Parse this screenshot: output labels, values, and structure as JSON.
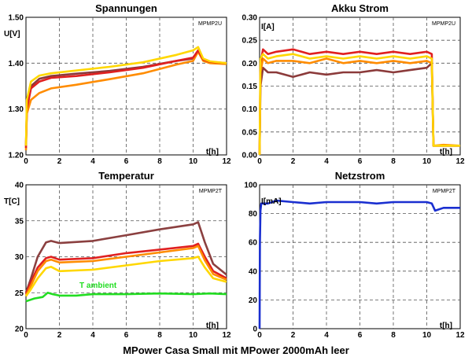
{
  "caption": "MPower Casa Small mit MPower 2000mAh leer",
  "chart_data": [
    {
      "type": "line",
      "title": "Spannungen",
      "ylabel": "U[V]",
      "xlabel": "t[h]",
      "tag": "MPMP2U",
      "xlim": [
        0,
        12
      ],
      "ylim": [
        1.2,
        1.5
      ],
      "xticks": [
        "0",
        "2",
        "4",
        "6",
        "8",
        "10",
        "12"
      ],
      "yticks": [
        "1.20",
        "1.30",
        "1.40",
        "1.50"
      ],
      "grid": true,
      "series": [
        {
          "color": "#8b3a3a",
          "x": [
            0,
            0.05,
            0.3,
            0.8,
            1.5,
            3,
            5,
            7,
            9,
            10,
            10.3,
            10.6,
            11,
            12
          ],
          "y": [
            1.22,
            1.3,
            1.35,
            1.366,
            1.372,
            1.377,
            1.383,
            1.392,
            1.405,
            1.41,
            1.425,
            1.407,
            1.402,
            1.4
          ]
        },
        {
          "color": "#ff8c00",
          "x": [
            0,
            0.05,
            0.3,
            0.8,
            1.5,
            3,
            5,
            7,
            9,
            10,
            10.3,
            10.6,
            11,
            12
          ],
          "y": [
            1.21,
            1.29,
            1.32,
            1.335,
            1.345,
            1.353,
            1.365,
            1.378,
            1.397,
            1.405,
            1.425,
            1.405,
            1.4,
            1.398
          ]
        },
        {
          "color": "#e02020",
          "x": [
            0,
            0.05,
            0.3,
            0.8,
            1.5,
            3,
            5,
            7,
            9,
            10,
            10.3,
            10.6,
            11,
            12
          ],
          "y": [
            1.215,
            1.3,
            1.345,
            1.36,
            1.368,
            1.372,
            1.38,
            1.39,
            1.405,
            1.412,
            1.428,
            1.408,
            1.403,
            1.4
          ]
        },
        {
          "color": "#ffd700",
          "x": [
            0,
            0.05,
            0.3,
            0.8,
            1.5,
            3,
            5,
            7,
            9,
            10,
            10.3,
            10.6,
            11,
            12
          ],
          "y": [
            1.22,
            1.32,
            1.36,
            1.373,
            1.378,
            1.384,
            1.392,
            1.402,
            1.418,
            1.428,
            1.435,
            1.41,
            1.404,
            1.4
          ]
        }
      ]
    },
    {
      "type": "line",
      "title": "Akku Strom",
      "ylabel": "I[A]",
      "xlabel": "t[h]",
      "tag": "MPMP2U",
      "xlim": [
        0,
        12
      ],
      "ylim": [
        0,
        0.3
      ],
      "xticks": [
        "0",
        "2",
        "4",
        "6",
        "8",
        "10",
        "12"
      ],
      "yticks": [
        "0.00",
        "0.05",
        "0.10",
        "0.15",
        "0.20",
        "0.25",
        "0.30"
      ],
      "grid": true,
      "series": [
        {
          "color": "#8b3a3a",
          "x": [
            0,
            0.05,
            0.2,
            0.5,
            1,
            2,
            3,
            4,
            5,
            6,
            7,
            8,
            9,
            10,
            10.3,
            10.4,
            11,
            12
          ],
          "y": [
            0,
            0.15,
            0.19,
            0.18,
            0.18,
            0.17,
            0.18,
            0.175,
            0.18,
            0.18,
            0.185,
            0.18,
            0.185,
            0.19,
            0.2,
            0.02,
            0.02,
            0.02
          ]
        },
        {
          "color": "#ff8c00",
          "x": [
            0,
            0.05,
            0.2,
            0.5,
            1,
            2,
            3,
            4,
            5,
            6,
            7,
            8,
            9,
            10,
            10.3,
            10.4,
            11,
            12
          ],
          "y": [
            0,
            0.18,
            0.21,
            0.2,
            0.205,
            0.205,
            0.2,
            0.21,
            0.2,
            0.205,
            0.2,
            0.205,
            0.2,
            0.205,
            0.2,
            0.02,
            0.022,
            0.02
          ]
        },
        {
          "color": "#e02020",
          "x": [
            0,
            0.05,
            0.2,
            0.5,
            1,
            2,
            3,
            4,
            5,
            6,
            7,
            8,
            9,
            10,
            10.3,
            10.4,
            11,
            12
          ],
          "y": [
            0,
            0.2,
            0.23,
            0.22,
            0.225,
            0.23,
            0.22,
            0.225,
            0.22,
            0.225,
            0.22,
            0.225,
            0.22,
            0.225,
            0.22,
            0.02,
            0.02,
            0.02
          ]
        },
        {
          "color": "#ffd700",
          "x": [
            0,
            0.05,
            0.2,
            0.5,
            1,
            2,
            3,
            4,
            5,
            6,
            7,
            8,
            9,
            10,
            10.3,
            10.4,
            11,
            12
          ],
          "y": [
            0,
            0.21,
            0.22,
            0.21,
            0.215,
            0.22,
            0.21,
            0.215,
            0.21,
            0.215,
            0.21,
            0.215,
            0.21,
            0.215,
            0.21,
            0.02,
            0.02,
            0.02
          ]
        }
      ]
    },
    {
      "type": "line",
      "title": "Temperatur",
      "ylabel": "T[C]",
      "xlabel": "t[h]",
      "tag": "MPMP2T",
      "annotation": "T ambient",
      "annotation_color": "#22dd22",
      "xlim": [
        0,
        12
      ],
      "ylim": [
        20,
        40
      ],
      "xticks": [
        "0",
        "2",
        "4",
        "6",
        "8",
        "10",
        "12"
      ],
      "yticks": [
        "20",
        "25",
        "30",
        "35",
        "40"
      ],
      "grid": true,
      "series": [
        {
          "color": "#8b4040",
          "x": [
            0,
            0.3,
            0.7,
            1.2,
            1.5,
            2,
            4,
            6,
            8,
            10,
            10.3,
            10.7,
            11.2,
            12
          ],
          "y": [
            25,
            27,
            30,
            32,
            32.2,
            31.9,
            32.2,
            33,
            33.8,
            34.5,
            34.8,
            32,
            29,
            27.5
          ]
        },
        {
          "color": "#e02020",
          "x": [
            0,
            0.3,
            0.7,
            1.2,
            1.5,
            2,
            4,
            6,
            8,
            10,
            10.3,
            10.7,
            11.2,
            12
          ],
          "y": [
            24.8,
            26.5,
            28.5,
            29.8,
            30,
            29.6,
            29.8,
            30.5,
            31,
            31.5,
            31.8,
            30,
            28,
            27
          ]
        },
        {
          "color": "#ff8c00",
          "x": [
            0,
            0.3,
            0.7,
            1.2,
            1.5,
            2,
            4,
            6,
            8,
            10,
            10.3,
            10.7,
            11.2,
            12
          ],
          "y": [
            24.6,
            26,
            28,
            29.4,
            29.6,
            29.2,
            29.4,
            30,
            30.6,
            31.2,
            31.5,
            29.5,
            27.6,
            26.8
          ]
        },
        {
          "color": "#ffd700",
          "x": [
            0,
            0.3,
            0.7,
            1.2,
            1.5,
            2,
            4,
            6,
            8,
            10,
            10.3,
            10.7,
            11.2,
            12
          ],
          "y": [
            24.5,
            25.5,
            27,
            28.4,
            28.6,
            28,
            28.2,
            28.8,
            29.4,
            29.8,
            30,
            28.5,
            27,
            26.5
          ]
        },
        {
          "color": "#22dd22",
          "x": [
            0,
            0.5,
            1,
            1.3,
            1.6,
            2,
            3,
            4,
            6,
            8,
            10,
            11,
            12
          ],
          "y": [
            23.8,
            24.2,
            24.4,
            25,
            24.8,
            24.6,
            24.6,
            24.8,
            24.8,
            24.9,
            24.8,
            24.9,
            24.8
          ]
        }
      ]
    },
    {
      "type": "line",
      "title": "Netzstrom",
      "ylabel": "I[mA]",
      "xlabel": "t[h]",
      "tag": "MPMP2T",
      "xlim": [
        0,
        12
      ],
      "ylim": [
        0,
        100
      ],
      "xticks": [
        "0",
        "2",
        "4",
        "6",
        "8",
        "10",
        "12"
      ],
      "yticks": [
        "0",
        "20",
        "40",
        "60",
        "80",
        "100"
      ],
      "grid": true,
      "series": [
        {
          "color": "#1a2fd0",
          "x": [
            0,
            0.02,
            0.05,
            0.1,
            0.5,
            1,
            2,
            3,
            4,
            5,
            6,
            7,
            8,
            9,
            10,
            10.3,
            10.5,
            11,
            12
          ],
          "y": [
            0,
            60,
            82,
            87,
            87,
            89,
            88,
            87,
            88,
            88,
            88,
            87,
            88,
            88,
            88,
            87,
            82,
            84,
            84
          ]
        }
      ]
    }
  ]
}
